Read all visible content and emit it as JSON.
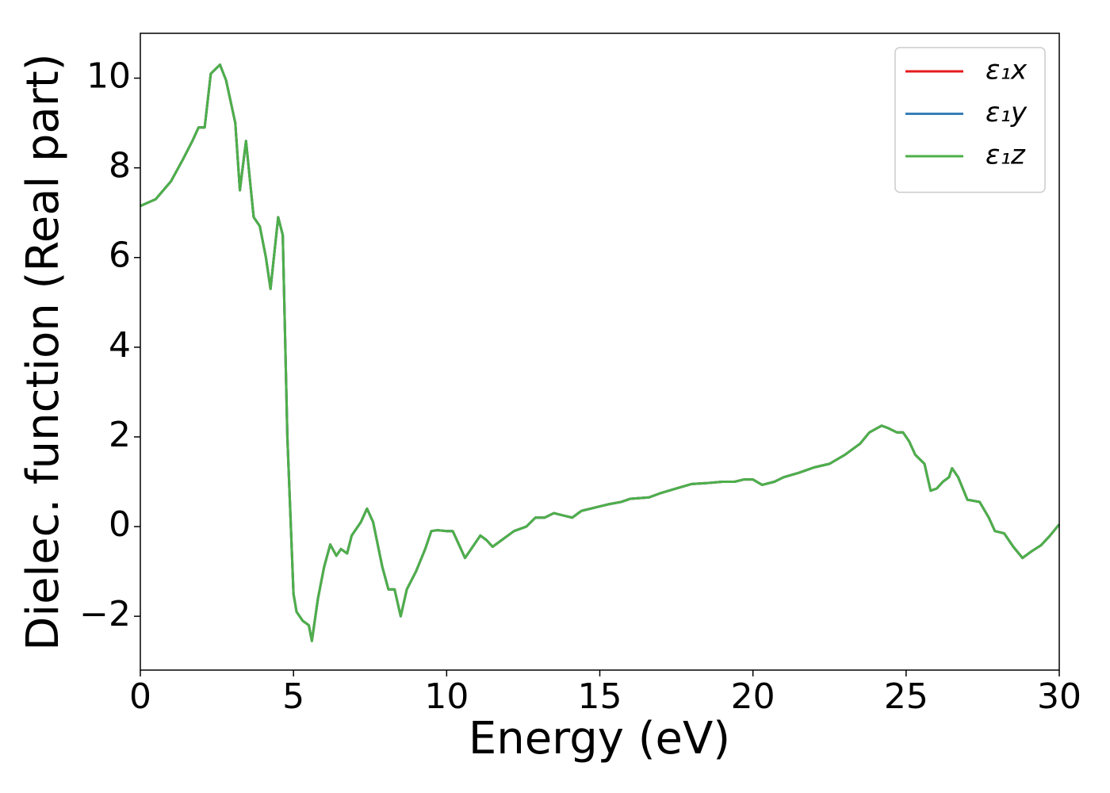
{
  "chart_data": {
    "type": "line",
    "xlabel": "Energy (eV)",
    "ylabel": "Dielec. function (Real part)",
    "x": [
      0,
      0.5,
      1.0,
      1.4,
      1.7,
      1.9,
      2.1,
      2.3,
      2.6,
      2.8,
      3.1,
      3.25,
      3.45,
      3.7,
      3.9,
      4.1,
      4.25,
      4.5,
      4.65,
      4.8,
      5.0,
      5.1,
      5.3,
      5.5,
      5.6,
      5.8,
      6.0,
      6.2,
      6.4,
      6.55,
      6.75,
      6.9,
      7.2,
      7.4,
      7.6,
      7.9,
      8.1,
      8.3,
      8.5,
      8.7,
      9.0,
      9.3,
      9.5,
      9.7,
      10.0,
      10.2,
      10.4,
      10.6,
      10.9,
      11.1,
      11.3,
      11.5,
      11.8,
      12.2,
      12.6,
      12.9,
      13.2,
      13.5,
      13.8,
      14.1,
      14.4,
      15.0,
      15.3,
      15.7,
      16.0,
      16.6,
      17.0,
      17.5,
      18.0,
      18.5,
      19.0,
      19.4,
      19.7,
      20.0,
      20.3,
      20.7,
      21.0,
      21.5,
      22.0,
      22.5,
      23.0,
      23.5,
      23.8,
      24.2,
      24.4,
      24.7,
      24.9,
      25.1,
      25.3,
      25.6,
      25.8,
      26.0,
      26.2,
      26.4,
      26.5,
      26.7,
      27.0,
      27.4,
      27.7,
      27.9,
      28.2,
      28.5,
      28.8,
      29.1,
      29.4,
      29.7,
      30.0
    ],
    "series": [
      {
        "name": "ε₁x",
        "color": "#e41a1c",
        "values": [
          7.15,
          7.3,
          7.7,
          8.2,
          8.6,
          8.9,
          8.9,
          10.1,
          10.3,
          9.95,
          9.0,
          7.5,
          8.6,
          6.9,
          6.7,
          6.0,
          5.3,
          6.9,
          6.5,
          2.0,
          -1.5,
          -1.9,
          -2.1,
          -2.2,
          -2.55,
          -1.6,
          -0.9,
          -0.4,
          -0.65,
          -0.5,
          -0.6,
          -0.2,
          0.1,
          0.4,
          0.1,
          -0.9,
          -1.4,
          -1.4,
          -2.0,
          -1.4,
          -1.0,
          -0.5,
          -0.1,
          -0.08,
          -0.1,
          -0.1,
          -0.4,
          -0.7,
          -0.4,
          -0.2,
          -0.3,
          -0.45,
          -0.3,
          -0.1,
          0.0,
          0.2,
          0.2,
          0.3,
          0.25,
          0.2,
          0.35,
          0.45,
          0.5,
          0.55,
          0.62,
          0.65,
          0.75,
          0.85,
          0.95,
          0.97,
          1.0,
          1.0,
          1.05,
          1.05,
          0.93,
          1.0,
          1.1,
          1.2,
          1.32,
          1.4,
          1.6,
          1.85,
          2.1,
          2.25,
          2.2,
          2.1,
          2.1,
          1.9,
          1.6,
          1.4,
          0.8,
          0.85,
          1.0,
          1.1,
          1.3,
          1.1,
          0.6,
          0.55,
          0.2,
          -0.1,
          -0.15,
          -0.45,
          -0.7,
          -0.55,
          -0.42,
          -0.2,
          0.05
        ]
      },
      {
        "name": "ε₁y",
        "color": "#377eb8",
        "values": [
          7.15,
          7.3,
          7.7,
          8.2,
          8.6,
          8.9,
          8.9,
          10.1,
          10.3,
          9.95,
          9.0,
          7.5,
          8.6,
          6.9,
          6.7,
          6.0,
          5.3,
          6.9,
          6.5,
          2.0,
          -1.5,
          -1.9,
          -2.1,
          -2.2,
          -2.55,
          -1.6,
          -0.9,
          -0.4,
          -0.65,
          -0.5,
          -0.6,
          -0.2,
          0.1,
          0.4,
          0.1,
          -0.9,
          -1.4,
          -1.4,
          -2.0,
          -1.4,
          -1.0,
          -0.5,
          -0.1,
          -0.08,
          -0.1,
          -0.1,
          -0.4,
          -0.7,
          -0.4,
          -0.2,
          -0.3,
          -0.45,
          -0.3,
          -0.1,
          0.0,
          0.2,
          0.2,
          0.3,
          0.25,
          0.2,
          0.35,
          0.45,
          0.5,
          0.55,
          0.62,
          0.65,
          0.75,
          0.85,
          0.95,
          0.97,
          1.0,
          1.0,
          1.05,
          1.05,
          0.93,
          1.0,
          1.1,
          1.2,
          1.32,
          1.4,
          1.6,
          1.85,
          2.1,
          2.25,
          2.2,
          2.1,
          2.1,
          1.9,
          1.6,
          1.4,
          0.8,
          0.85,
          1.0,
          1.1,
          1.3,
          1.1,
          0.6,
          0.55,
          0.2,
          -0.1,
          -0.15,
          -0.45,
          -0.7,
          -0.55,
          -0.42,
          -0.2,
          0.05
        ]
      },
      {
        "name": "ε₁z",
        "color": "#4daf4a",
        "values": [
          7.15,
          7.3,
          7.7,
          8.2,
          8.6,
          8.9,
          8.9,
          10.1,
          10.3,
          9.95,
          9.0,
          7.5,
          8.6,
          6.9,
          6.7,
          6.0,
          5.3,
          6.9,
          6.5,
          2.0,
          -1.5,
          -1.9,
          -2.1,
          -2.2,
          -2.55,
          -1.6,
          -0.9,
          -0.4,
          -0.65,
          -0.5,
          -0.6,
          -0.2,
          0.1,
          0.4,
          0.1,
          -0.9,
          -1.4,
          -1.4,
          -2.0,
          -1.4,
          -1.0,
          -0.5,
          -0.1,
          -0.08,
          -0.1,
          -0.1,
          -0.4,
          -0.7,
          -0.4,
          -0.2,
          -0.3,
          -0.45,
          -0.3,
          -0.1,
          0.0,
          0.2,
          0.2,
          0.3,
          0.25,
          0.2,
          0.35,
          0.45,
          0.5,
          0.55,
          0.62,
          0.65,
          0.75,
          0.85,
          0.95,
          0.97,
          1.0,
          1.0,
          1.05,
          1.05,
          0.93,
          1.0,
          1.1,
          1.2,
          1.32,
          1.4,
          1.6,
          1.85,
          2.1,
          2.25,
          2.2,
          2.1,
          2.1,
          1.9,
          1.6,
          1.4,
          0.8,
          0.85,
          1.0,
          1.1,
          1.3,
          1.1,
          0.6,
          0.55,
          0.2,
          -0.1,
          -0.15,
          -0.45,
          -0.7,
          -0.55,
          -0.42,
          -0.2,
          0.05
        ]
      }
    ],
    "xlim": [
      0,
      30
    ],
    "xticks": [
      0,
      5,
      10,
      15,
      20,
      25,
      30
    ],
    "ylim": [
      -3.2,
      11
    ],
    "yticks": [
      {
        "value": -2,
        "label": "−2"
      },
      0,
      2,
      4,
      6,
      8,
      10
    ],
    "legend": "upper right"
  }
}
